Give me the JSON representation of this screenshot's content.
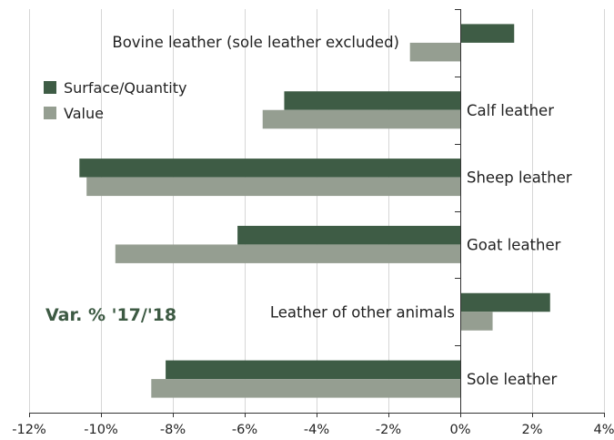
{
  "chart_data": {
    "type": "bar",
    "orientation": "horizontal",
    "categories": [
      "Bovine leather  (sole leather excluded)",
      "Calf leather",
      "Sheep leather",
      "Goat leather",
      "Leather of other animals",
      "Sole leather"
    ],
    "series": [
      {
        "name": "Surface/Quantity",
        "color": "#3e5c45",
        "values": [
          1.5,
          -4.9,
          -10.6,
          -6.2,
          2.5,
          -8.2
        ]
      },
      {
        "name": "Value",
        "color": "#959e91",
        "values": [
          -1.4,
          -5.5,
          -10.4,
          -9.6,
          0.9,
          -8.6
        ]
      }
    ],
    "xlim": [
      -12,
      4
    ],
    "xticks": [
      -12,
      -10,
      -8,
      -6,
      -4,
      -2,
      0,
      2,
      4
    ],
    "xtick_labels": [
      "-12%",
      "-10%",
      "-8%",
      "-6%",
      "-4%",
      "-2%",
      "0%",
      "2%",
      "4%"
    ],
    "grid": "vertical",
    "legend_placement": "top-left",
    "annotation": "Var. % '17/'18",
    "title": "",
    "xlabel": "",
    "ylabel": ""
  }
}
